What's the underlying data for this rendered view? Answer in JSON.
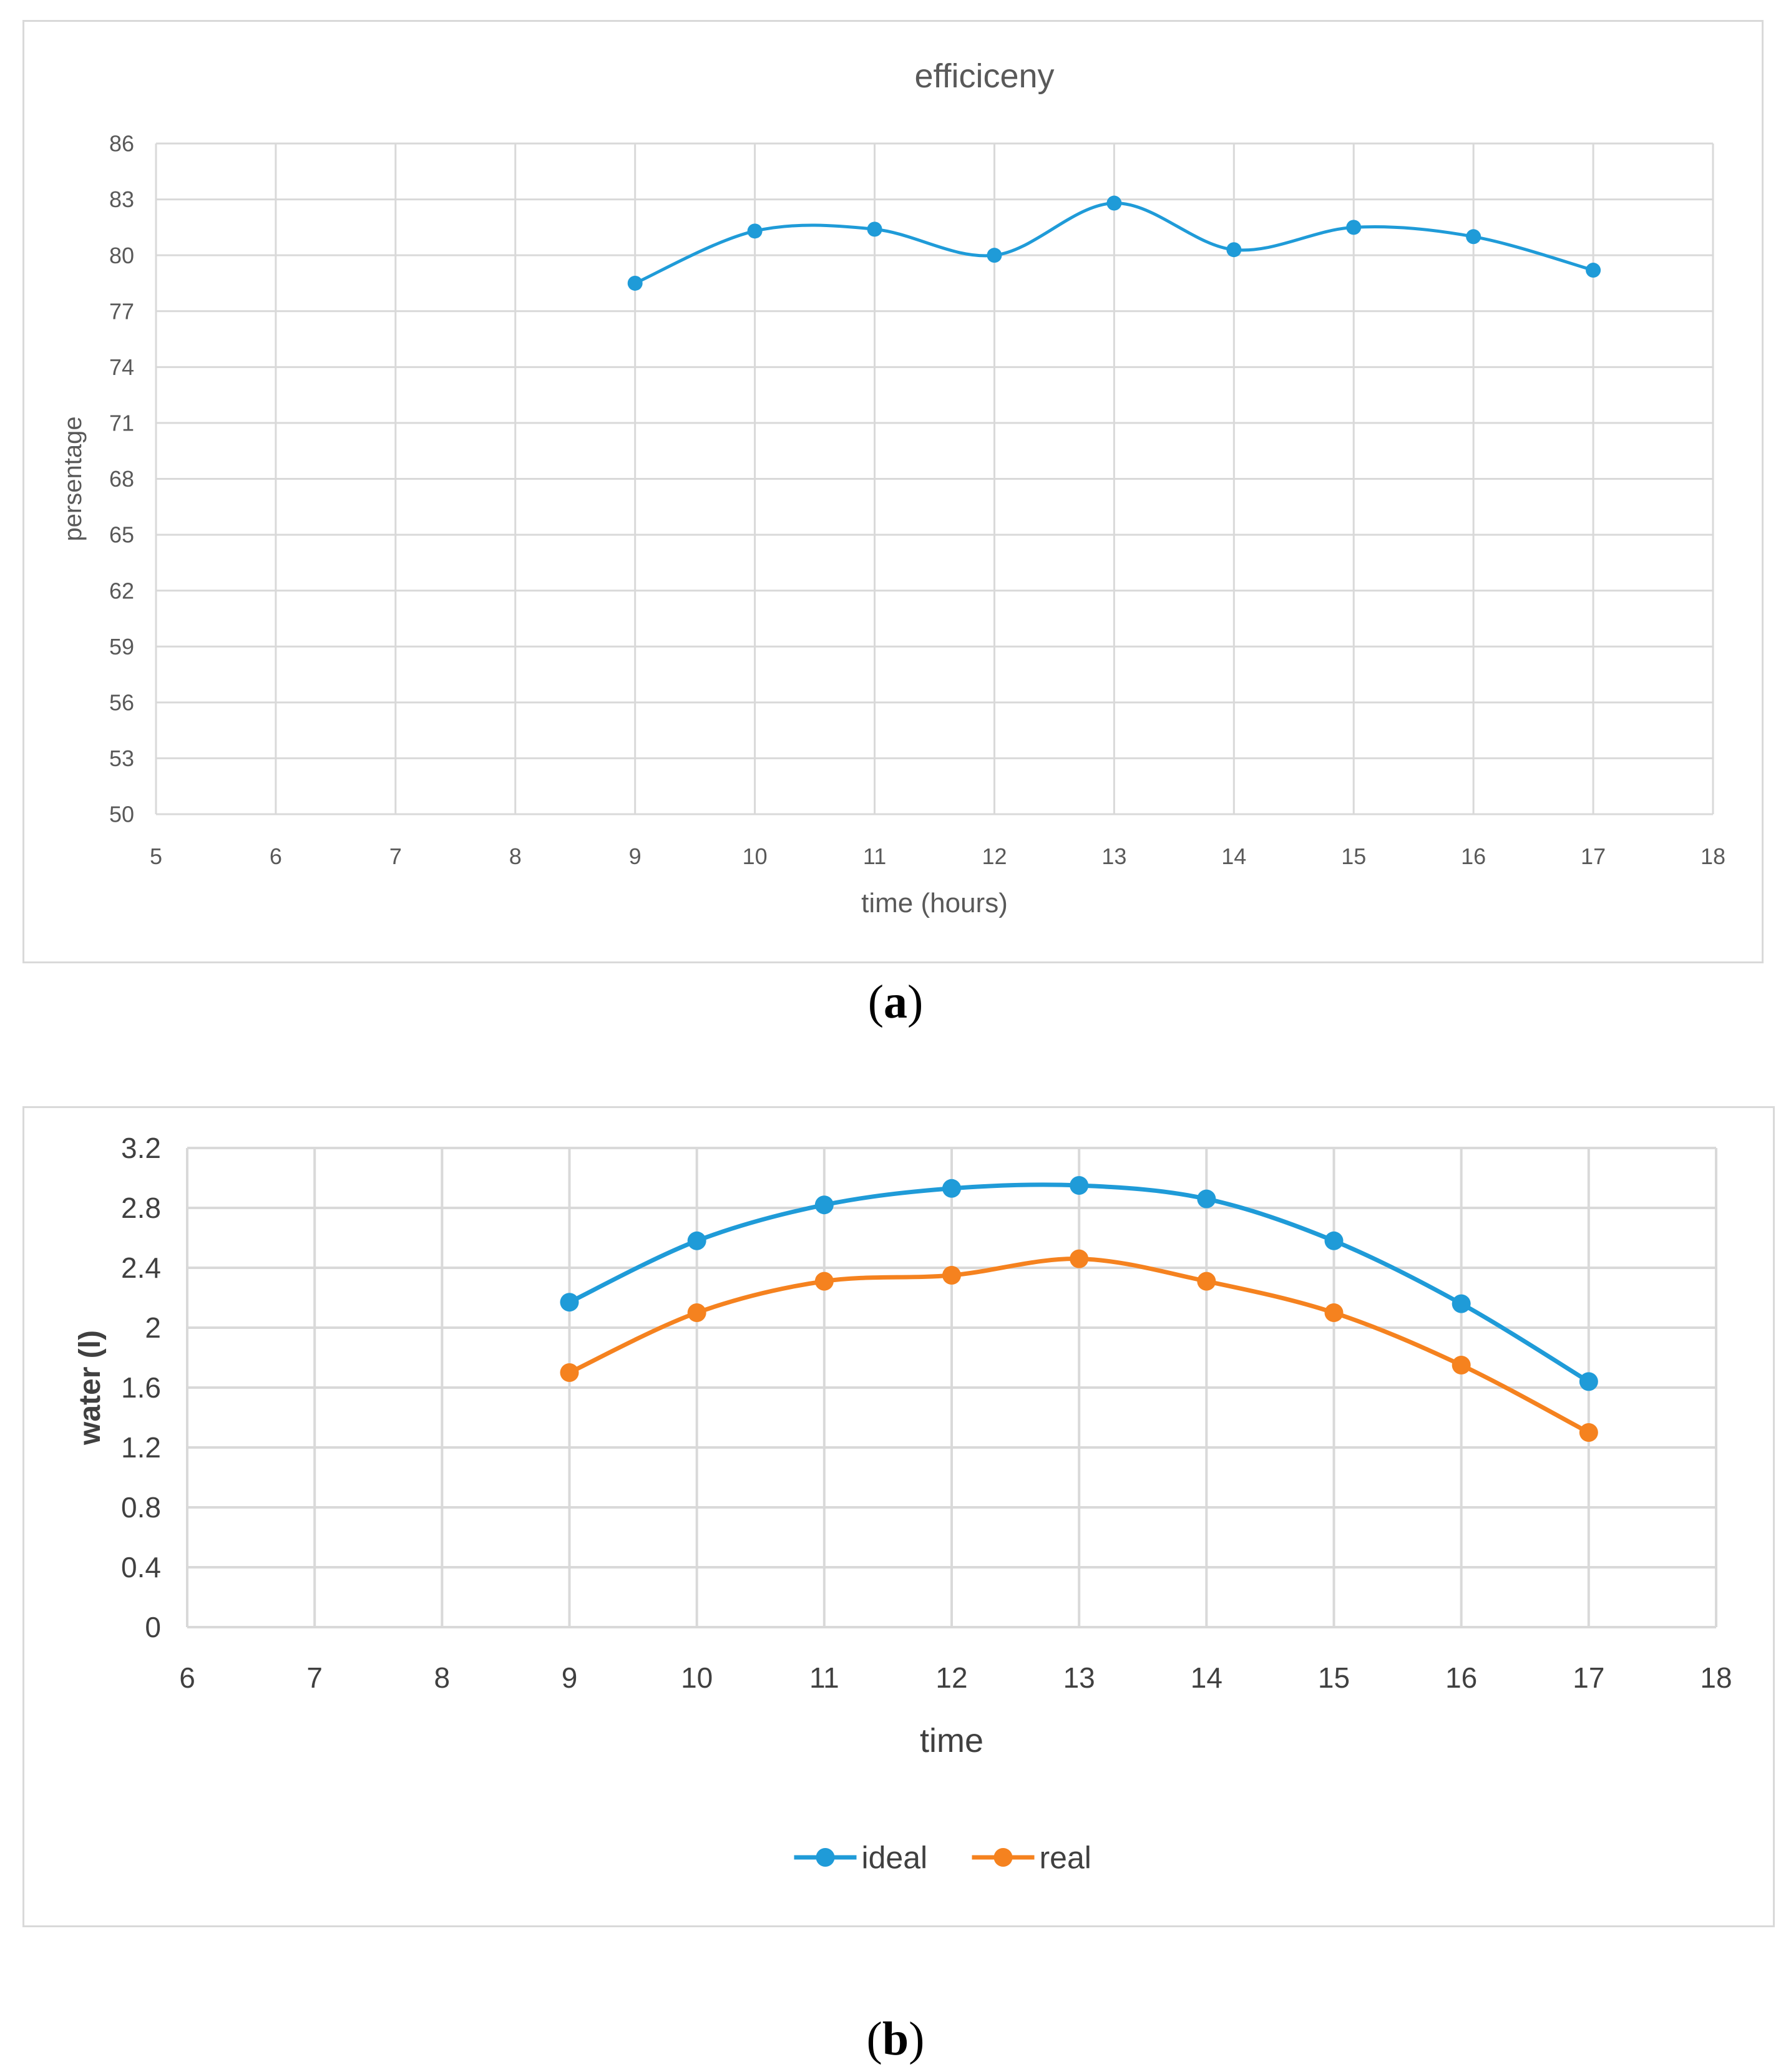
{
  "captions": {
    "a_open": "(",
    "a_letter": "a",
    "a_close": ")",
    "b_open": "(",
    "b_letter": "b",
    "b_close": ")"
  },
  "chart_data": [
    {
      "id": "a",
      "type": "line",
      "title": "efficiceny",
      "xlabel": "time (hours)",
      "ylabel": "persentage",
      "xlim": [
        5,
        18
      ],
      "ylim": [
        50,
        86
      ],
      "xticks": [
        5,
        6,
        7,
        8,
        9,
        10,
        11,
        12,
        13,
        14,
        15,
        16,
        17,
        18
      ],
      "yticks": [
        50,
        53,
        56,
        59,
        62,
        65,
        68,
        71,
        74,
        77,
        80,
        83,
        86
      ],
      "grid": true,
      "smooth": true,
      "series": [
        {
          "name": "efficiceny",
          "color": "#1f9bd8",
          "x": [
            9,
            10,
            11,
            12,
            13,
            14,
            15,
            16,
            17
          ],
          "y": [
            78.5,
            81.3,
            81.4,
            80.0,
            82.8,
            80.3,
            81.5,
            81.0,
            79.2
          ]
        }
      ]
    },
    {
      "id": "b",
      "type": "line",
      "title": "",
      "xlabel": "time",
      "ylabel": "water (l)",
      "xlim": [
        6,
        18
      ],
      "ylim": [
        0,
        3.2
      ],
      "xticks": [
        6,
        7,
        8,
        9,
        10,
        11,
        12,
        13,
        14,
        15,
        16,
        17,
        18
      ],
      "yticks": [
        0,
        0.4,
        0.8,
        1.2,
        1.6,
        2,
        2.4,
        2.8,
        3.2
      ],
      "grid": true,
      "smooth": true,
      "legend": "bottom",
      "series": [
        {
          "name": "ideal",
          "color": "#1f9bd8",
          "x": [
            9,
            10,
            11,
            12,
            13,
            14,
            15,
            16,
            17
          ],
          "y": [
            2.17,
            2.58,
            2.82,
            2.93,
            2.95,
            2.86,
            2.58,
            2.16,
            1.64
          ]
        },
        {
          "name": "real",
          "color": "#f5821f",
          "x": [
            9,
            10,
            11,
            12,
            13,
            14,
            15,
            16,
            17
          ],
          "y": [
            1.7,
            2.1,
            2.31,
            2.35,
            2.46,
            2.31,
            2.1,
            1.75,
            1.3
          ]
        }
      ]
    }
  ]
}
